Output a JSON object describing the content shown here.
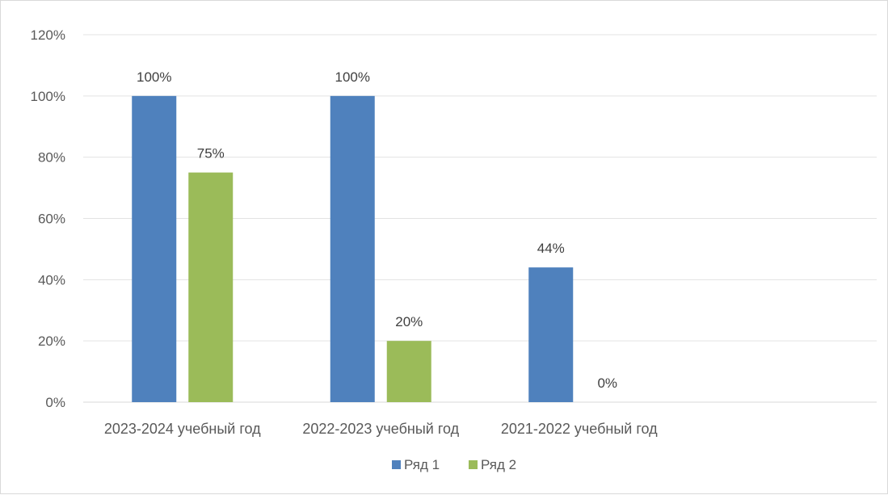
{
  "chart_data": {
    "type": "bar",
    "categories": [
      "2023-2024 учебный год",
      "2022-2023 учебный год",
      "2021-2022 учебный год",
      ""
    ],
    "series": [
      {
        "name": "Ряд 1",
        "values": [
          100,
          100,
          44,
          null
        ],
        "labels": [
          "100%",
          "100%",
          "44%",
          ""
        ],
        "color": "#4f81bd"
      },
      {
        "name": "Ряд 2",
        "values": [
          75,
          20,
          0,
          null
        ],
        "labels": [
          "75%",
          "20%",
          "0%",
          ""
        ],
        "color": "#9bbb59"
      }
    ],
    "yticks": [
      "0%",
      "20%",
      "40%",
      "60%",
      "80%",
      "100%",
      "120%"
    ],
    "ylim": [
      0,
      120
    ],
    "grid": true,
    "legend": "bottom",
    "title": "",
    "xlabel": "",
    "ylabel": ""
  }
}
